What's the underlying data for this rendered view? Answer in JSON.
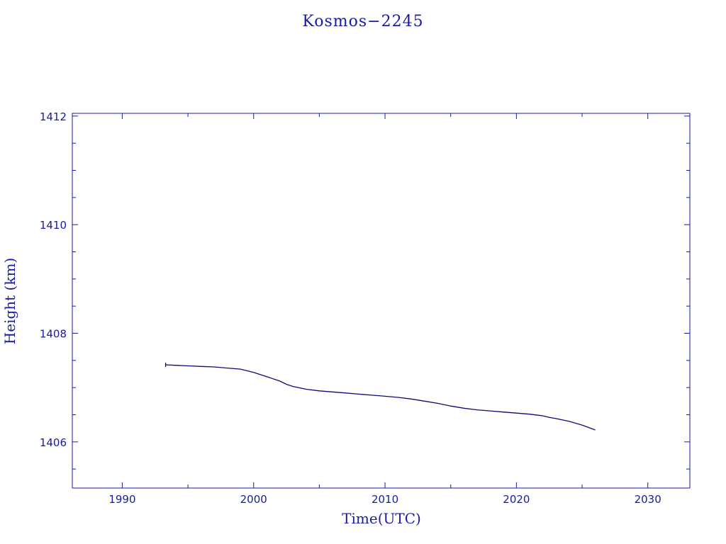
{
  "chart_data": {
    "type": "line",
    "title": "Kosmos−2245",
    "xlabel": "Time(UTC)",
    "ylabel": "Height (km)",
    "xlim": [
      1986.2,
      2033.2
    ],
    "ylim": [
      1405.15,
      1412.05
    ],
    "x_ticks": [
      1990,
      2000,
      2010,
      2020,
      2030
    ],
    "x_tick_labels": [
      "1990",
      "2000",
      "2010",
      "2020",
      "2030"
    ],
    "y_ticks": [
      1406,
      1408,
      1410,
      1412
    ],
    "y_tick_labels": [
      "1406",
      "1408",
      "1410",
      "1412"
    ],
    "x_minor_step": 5,
    "y_minor_step": 0.5,
    "grid": false,
    "colors": {
      "axes": "#1a1aa6",
      "series": "#0a0a7a"
    },
    "series": [
      {
        "x": [
          1993.3,
          1994,
          1995,
          1996,
          1997,
          1998,
          1999,
          2000,
          2001,
          2002,
          2002.5,
          2003,
          2004,
          2005,
          2006,
          2007,
          2008,
          2009,
          2010,
          2011,
          2012,
          2013,
          2014,
          2015,
          2016,
          2017,
          2018,
          2019,
          2020,
          2021,
          2022,
          2022.5,
          2023,
          2024,
          2025,
          2026
        ],
        "values": [
          1407.42,
          1407.41,
          1407.4,
          1407.39,
          1407.38,
          1407.36,
          1407.34,
          1407.28,
          1407.2,
          1407.12,
          1407.06,
          1407.02,
          1406.97,
          1406.94,
          1406.92,
          1406.9,
          1406.88,
          1406.86,
          1406.84,
          1406.82,
          1406.79,
          1406.75,
          1406.71,
          1406.66,
          1406.62,
          1406.59,
          1406.57,
          1406.55,
          1406.53,
          1406.51,
          1406.48,
          1406.45,
          1406.43,
          1406.38,
          1406.31,
          1406.22
        ]
      }
    ]
  }
}
